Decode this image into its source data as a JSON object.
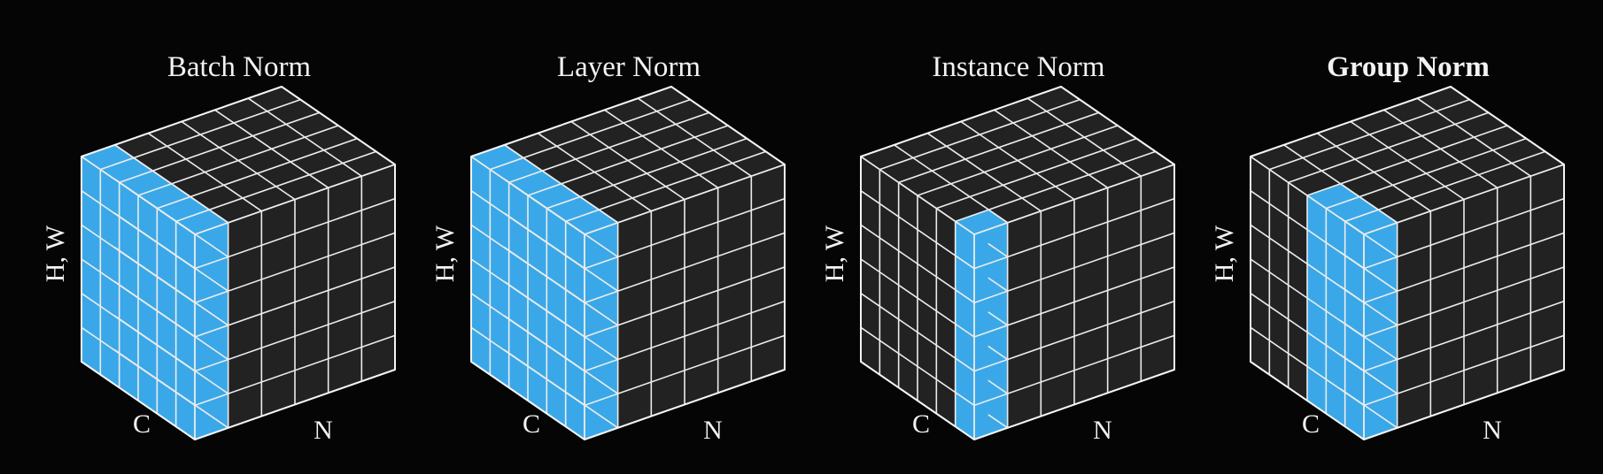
{
  "colors": {
    "background": "#050505",
    "cube_fill": "#222222",
    "highlight": "#3aa8e8",
    "grid_line": "#ececec"
  },
  "grid_size": 6,
  "panels": [
    {
      "id": "batch-norm",
      "title": "Batch Norm",
      "title_bold": false,
      "labels": {
        "hw": "H, W",
        "c": "C",
        "n": "N"
      },
      "highlight": {
        "c": [
          0,
          6
        ],
        "n": [
          0,
          1
        ]
      }
    },
    {
      "id": "layer-norm",
      "title": "Layer Norm",
      "title_bold": false,
      "labels": {
        "hw": "H, W",
        "c": "C",
        "n": "N"
      },
      "highlight": {
        "c": [
          0,
          6
        ],
        "n": [
          0,
          1
        ]
      }
    },
    {
      "id": "instance-norm",
      "title": "Instance Norm",
      "title_bold": false,
      "labels": {
        "hw": "H, W",
        "c": "C",
        "n": "N"
      },
      "highlight": {
        "c": [
          0,
          1
        ],
        "n": [
          0,
          1
        ]
      }
    },
    {
      "id": "group-norm",
      "title": "Group Norm",
      "title_bold": true,
      "labels": {
        "hw": "H, W",
        "c": "C",
        "n": "N"
      },
      "highlight": {
        "c": [
          0,
          3
        ],
        "n": [
          0,
          1
        ]
      }
    }
  ]
}
